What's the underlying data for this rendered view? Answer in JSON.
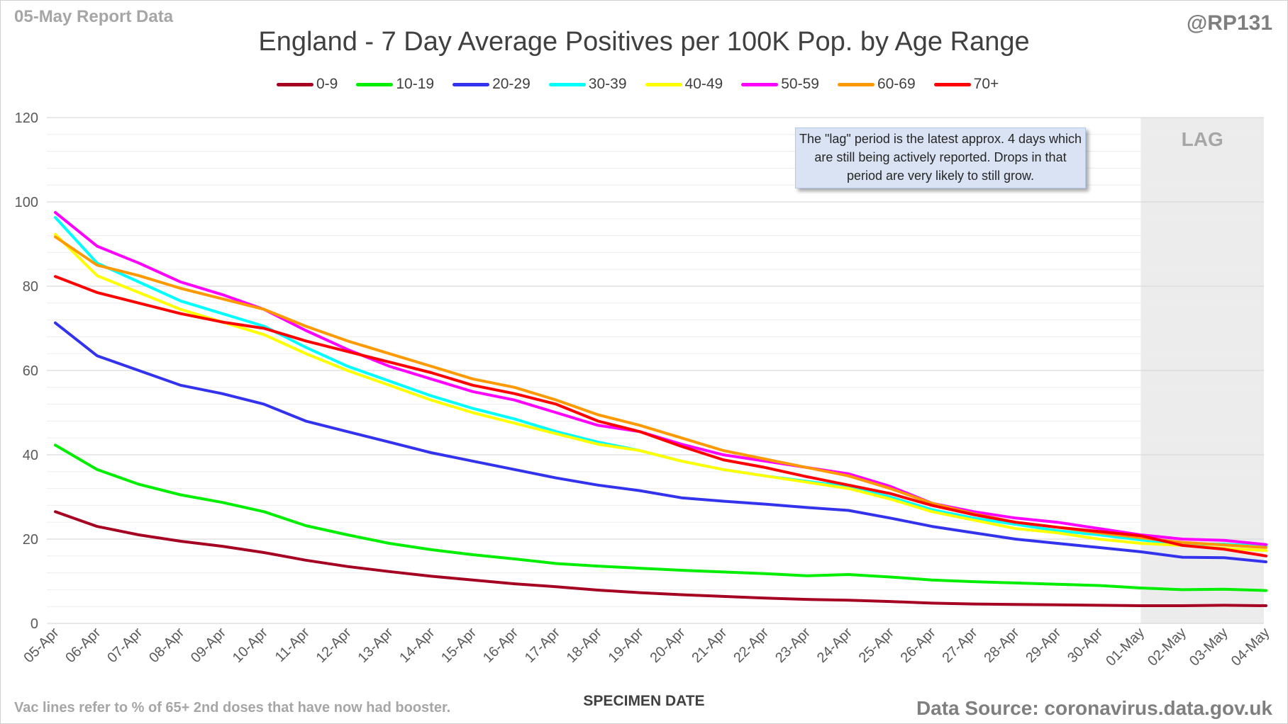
{
  "corner_label": "05-May Report Data",
  "handle": "@RP131",
  "footnote": "Vac lines refer to % of 65+ 2nd doses that have now had booster.",
  "source": "Data Source: coronavirus.data.gov.uk",
  "lag_note": "The \"lag\" period is the latest approx. 4 days which are still being actively reported.  Drops in that period are very likely to still grow.",
  "colors": {
    "0-9": "#a50021",
    "10-19": "#00ee00",
    "20-29": "#3333ee",
    "30-39": "#00ffff",
    "40-49": "#ffff00",
    "50-59": "#ff00ff",
    "60-69": "#ff9900",
    "70+": "#ff0000",
    "lag_shade": "#ececec"
  },
  "chart_data": {
    "type": "line",
    "title": "England - 7 Day Average Positives per 100K Pop. by Age Range",
    "xlabel": "SPECIMEN DATE",
    "ylabel": "",
    "ylim": [
      0,
      120
    ],
    "yticks": [
      0,
      20,
      40,
      60,
      80,
      100,
      120
    ],
    "grid": "horizontal",
    "legend": "top",
    "lag_region": {
      "label": "LAG",
      "from": "01-May",
      "to": "04-May"
    },
    "x": [
      "05-Apr",
      "06-Apr",
      "07-Apr",
      "08-Apr",
      "09-Apr",
      "10-Apr",
      "11-Apr",
      "12-Apr",
      "13-Apr",
      "14-Apr",
      "15-Apr",
      "16-Apr",
      "17-Apr",
      "18-Apr",
      "19-Apr",
      "20-Apr",
      "21-Apr",
      "22-Apr",
      "23-Apr",
      "24-Apr",
      "25-Apr",
      "26-Apr",
      "27-Apr",
      "28-Apr",
      "29-Apr",
      "30-Apr",
      "01-May",
      "02-May",
      "03-May",
      "04-May"
    ],
    "series": [
      {
        "name": "0-9",
        "values": [
          26.5,
          23.0,
          21.0,
          19.5,
          18.3,
          16.8,
          15.0,
          13.5,
          12.3,
          11.2,
          10.3,
          9.4,
          8.7,
          7.9,
          7.3,
          6.8,
          6.4,
          6.0,
          5.7,
          5.5,
          5.2,
          4.8,
          4.6,
          4.5,
          4.4,
          4.3,
          4.2,
          4.2,
          4.3,
          4.2
        ]
      },
      {
        "name": "10-19",
        "values": [
          42.3,
          36.5,
          33.0,
          30.5,
          28.7,
          26.5,
          23.2,
          21.0,
          19.0,
          17.5,
          16.3,
          15.3,
          14.2,
          13.6,
          13.1,
          12.6,
          12.2,
          11.8,
          11.3,
          11.6,
          11.0,
          10.3,
          9.9,
          9.6,
          9.3,
          9.0,
          8.4,
          8.0,
          8.1,
          7.8
        ]
      },
      {
        "name": "20-29",
        "values": [
          71.3,
          63.5,
          60.0,
          56.5,
          54.5,
          52.0,
          48.0,
          45.5,
          43.0,
          40.5,
          38.5,
          36.5,
          34.5,
          32.8,
          31.5,
          29.8,
          29.0,
          28.3,
          27.5,
          26.8,
          25.0,
          23.0,
          21.5,
          20.0,
          19.0,
          18.0,
          17.0,
          15.7,
          15.6,
          14.6
        ]
      },
      {
        "name": "30-39",
        "values": [
          96.3,
          85.5,
          81.0,
          76.5,
          73.5,
          70.5,
          65.5,
          61.0,
          57.5,
          54.0,
          51.0,
          48.5,
          45.5,
          43.0,
          41.0,
          38.5,
          36.5,
          35.0,
          33.7,
          32.5,
          30.0,
          27.0,
          25.0,
          23.5,
          22.0,
          21.0,
          19.8,
          18.8,
          18.8,
          18.3
        ]
      },
      {
        "name": "40-49",
        "values": [
          92.3,
          82.5,
          78.5,
          74.5,
          71.5,
          68.5,
          64.0,
          60.0,
          56.5,
          53.0,
          50.0,
          47.5,
          45.0,
          42.5,
          41.0,
          38.5,
          36.5,
          35.0,
          33.5,
          32.0,
          29.5,
          26.5,
          24.5,
          22.5,
          21.5,
          20.0,
          19.0,
          18.5,
          17.8,
          17.3
        ]
      },
      {
        "name": "50-59",
        "values": [
          97.5,
          89.5,
          85.5,
          81.0,
          78.0,
          74.5,
          69.5,
          65.0,
          61.0,
          58.0,
          55.0,
          53.0,
          50.0,
          47.0,
          45.5,
          42.5,
          40.0,
          38.5,
          37.0,
          35.5,
          32.5,
          28.5,
          26.5,
          25.0,
          24.0,
          22.5,
          21.0,
          20.0,
          19.7,
          18.7
        ]
      },
      {
        "name": "60-69",
        "values": [
          91.7,
          85.0,
          82.5,
          79.5,
          77.0,
          74.5,
          70.5,
          67.0,
          64.0,
          61.0,
          58.0,
          56.0,
          53.0,
          49.5,
          47.0,
          44.0,
          41.0,
          39.0,
          37.0,
          35.0,
          32.0,
          28.5,
          26.0,
          24.0,
          22.8,
          21.5,
          20.3,
          19.2,
          18.6,
          18.0
        ]
      },
      {
        "name": "70+",
        "values": [
          82.3,
          78.5,
          76.0,
          73.5,
          71.5,
          70.0,
          67.0,
          64.5,
          62.0,
          59.5,
          56.5,
          54.5,
          52.0,
          48.0,
          45.5,
          42.0,
          38.8,
          37.0,
          34.8,
          32.8,
          30.8,
          28.0,
          25.8,
          24.0,
          22.8,
          21.8,
          20.8,
          18.5,
          17.6,
          16.0
        ]
      }
    ]
  }
}
